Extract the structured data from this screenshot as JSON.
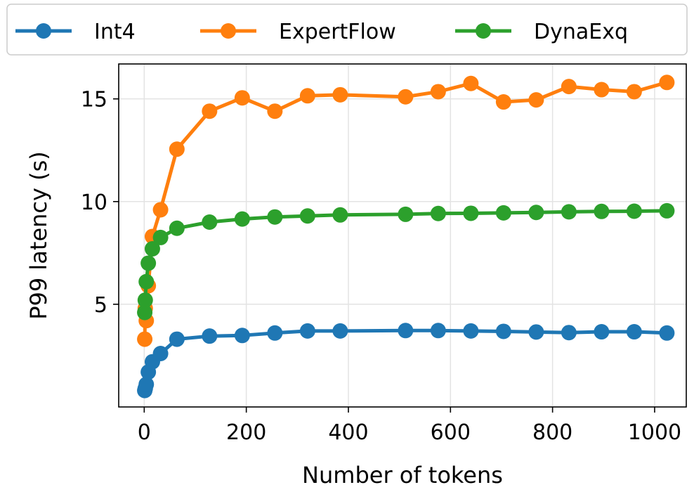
{
  "chart_data": {
    "type": "line",
    "title": "",
    "xlabel": "Number of tokens",
    "ylabel": "P99 latency (s)",
    "xlim": [
      -50,
      1062
    ],
    "ylim": [
      0,
      16.7
    ],
    "xticks": [
      0,
      200,
      400,
      600,
      800,
      1000
    ],
    "yticks": [
      5,
      10,
      15
    ],
    "xtick_labels": [
      "0",
      "200",
      "400",
      "600",
      "800",
      "1000"
    ],
    "ytick_labels": [
      "5",
      "10",
      "15"
    ],
    "grid": true,
    "legend": {
      "placement": "top, outside plot",
      "entries": [
        "Int4",
        "ExpertFlow",
        "DynaExq"
      ]
    },
    "series": [
      {
        "name": "Int4",
        "color": "#1f77b4",
        "x": [
          1,
          2,
          4,
          8,
          16,
          32,
          64,
          128,
          192,
          256,
          320,
          384,
          512,
          576,
          640,
          704,
          768,
          832,
          896,
          960,
          1024
        ],
        "y": [
          0.8,
          0.9,
          1.1,
          1.7,
          2.2,
          2.6,
          3.3,
          3.45,
          3.48,
          3.6,
          3.7,
          3.7,
          3.72,
          3.72,
          3.7,
          3.68,
          3.65,
          3.62,
          3.66,
          3.66,
          3.6
        ]
      },
      {
        "name": "ExpertFlow",
        "color": "#ff7f0e",
        "x": [
          1,
          2,
          4,
          8,
          16,
          32,
          64,
          128,
          192,
          256,
          320,
          384,
          512,
          576,
          640,
          704,
          768,
          832,
          896,
          960,
          1024
        ],
        "y": [
          3.3,
          4.8,
          4.2,
          5.9,
          8.3,
          9.6,
          12.55,
          14.4,
          15.05,
          14.4,
          15.15,
          15.2,
          15.1,
          15.35,
          15.75,
          14.85,
          14.95,
          15.6,
          15.45,
          15.35,
          15.8
        ]
      },
      {
        "name": "DynaExq",
        "color": "#2ca02c",
        "x": [
          1,
          2,
          4,
          8,
          16,
          32,
          64,
          128,
          192,
          256,
          320,
          384,
          512,
          576,
          640,
          704,
          768,
          832,
          896,
          960,
          1024
        ],
        "y": [
          4.6,
          5.2,
          6.1,
          7.0,
          7.7,
          8.25,
          8.7,
          9.0,
          9.15,
          9.25,
          9.3,
          9.35,
          9.38,
          9.42,
          9.43,
          9.45,
          9.47,
          9.5,
          9.52,
          9.53,
          9.55
        ]
      }
    ]
  }
}
